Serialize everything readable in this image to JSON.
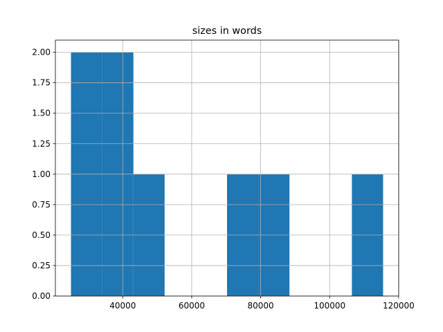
{
  "chart_data": {
    "type": "histogram",
    "title": "sizes in words",
    "bins": [
      25000,
      34050,
      43100,
      52150,
      61200,
      70250,
      79300,
      88350,
      97400,
      106450,
      115500
    ],
    "counts": [
      2,
      2,
      1,
      0,
      0,
      1,
      1,
      0,
      0,
      1
    ],
    "color": "#1f77b4",
    "xlim": [
      20475,
      120025
    ],
    "xticks": [
      40000,
      60000,
      80000,
      100000,
      120000
    ],
    "ylim": [
      0,
      2.1
    ],
    "yticks": [
      {
        "value": 0,
        "label": "0.00"
      },
      {
        "value": 0.25,
        "label": "0.25"
      },
      {
        "value": 0.5,
        "label": "0.50"
      },
      {
        "value": 0.75,
        "label": "0.75"
      },
      {
        "value": 1,
        "label": "1.00"
      },
      {
        "value": 1.25,
        "label": "1.25"
      },
      {
        "value": 1.5,
        "label": "1.50"
      },
      {
        "value": 1.75,
        "label": "1.75"
      },
      {
        "value": 2,
        "label": "2.00"
      }
    ],
    "grid": true
  }
}
